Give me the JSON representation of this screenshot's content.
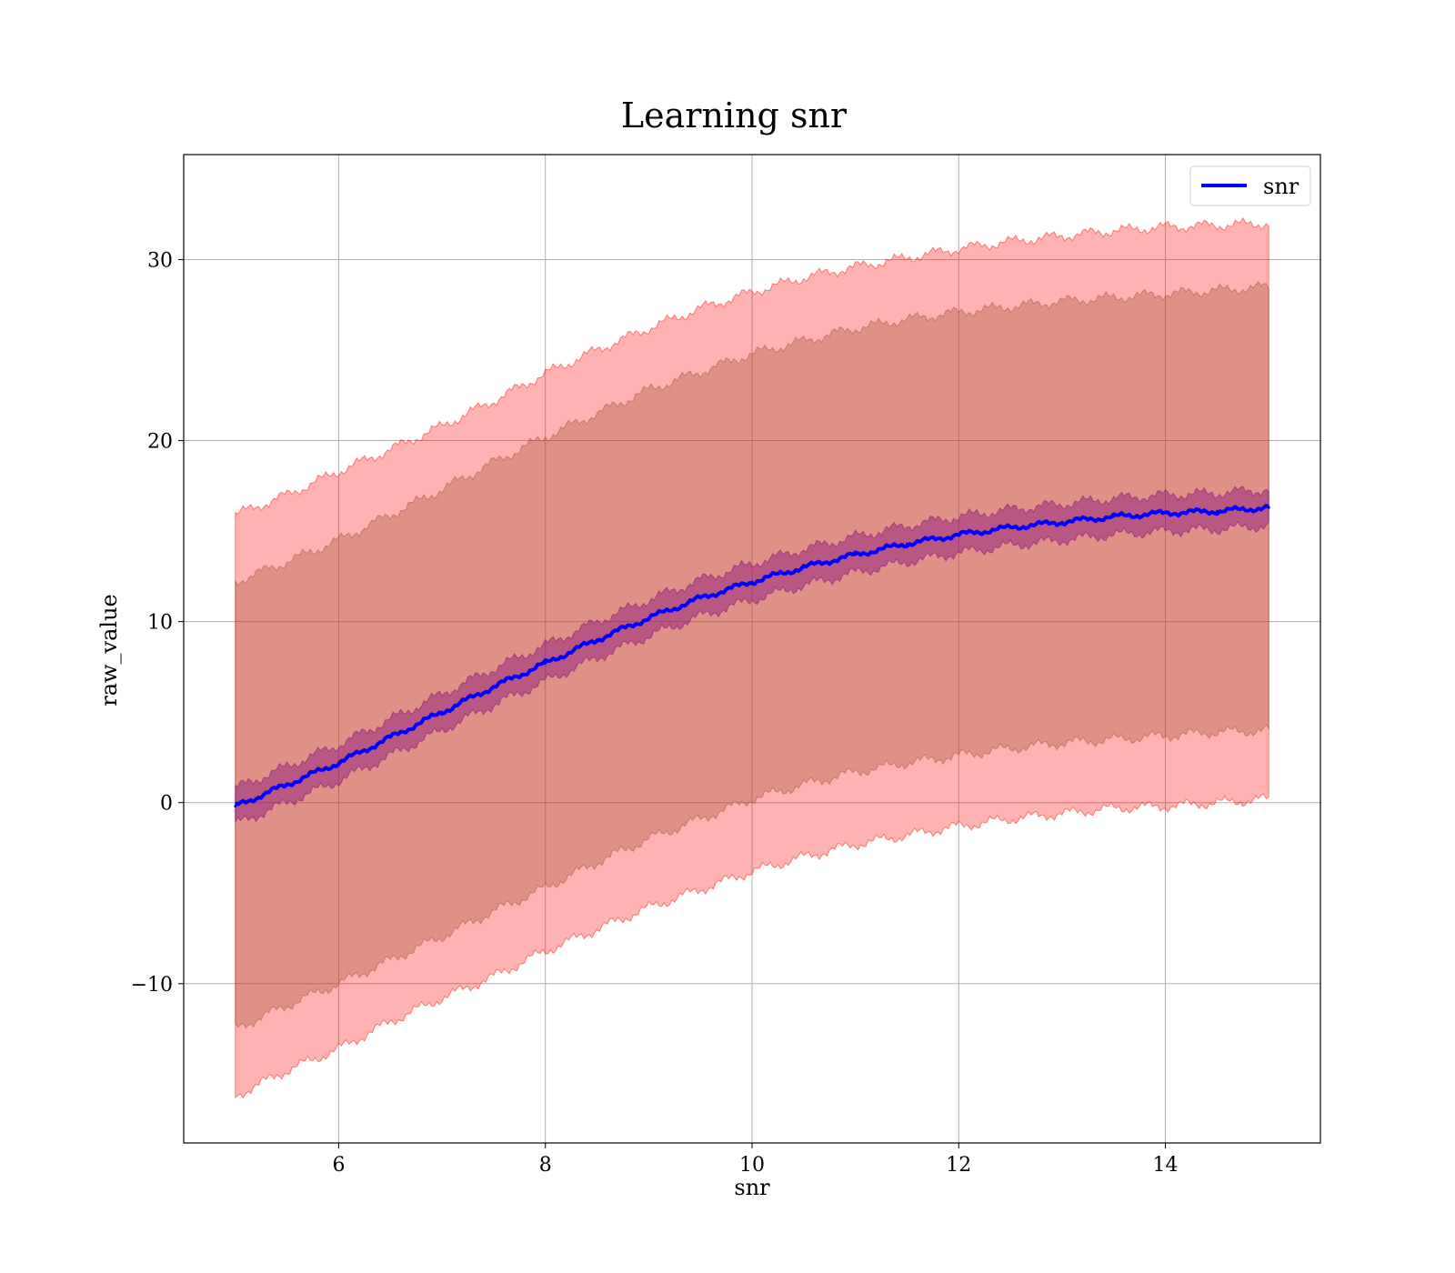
{
  "chart_data": {
    "type": "line",
    "title": "Learning snr",
    "xlabel": "snr",
    "ylabel": "raw_value",
    "xlim": [
      4.5,
      15.5
    ],
    "ylim": [
      -18.8,
      35.8
    ],
    "xticks": [
      6,
      8,
      10,
      12,
      14
    ],
    "yticks": [
      -10,
      0,
      10,
      20,
      30
    ],
    "ytick_labels": [
      "−10",
      "0",
      "10",
      "20",
      "30"
    ],
    "grid": true,
    "legend": {
      "position": "top-right",
      "entries": [
        "snr"
      ]
    },
    "x": [
      5,
      5.5,
      6,
      6.5,
      7,
      7.5,
      8,
      8.5,
      9,
      9.5,
      10,
      10.5,
      11,
      11.5,
      12,
      12.5,
      13,
      13.5,
      14,
      14.5,
      15
    ],
    "series": [
      {
        "name": "snr",
        "color": "#0000ff",
        "values": [
          -0.2,
          1.0,
          2.2,
          3.6,
          5.0,
          6.4,
          7.7,
          9.0,
          10.2,
          11.3,
          12.2,
          13.0,
          13.7,
          14.3,
          14.8,
          15.2,
          15.5,
          15.8,
          16.0,
          16.1,
          16.3
        ]
      }
    ],
    "bands": [
      {
        "color": "#ff0000",
        "opacity": 0.3,
        "lower": [
          -16.2,
          -14.8,
          -13.6,
          -12.1,
          -10.8,
          -9.6,
          -8.2,
          -7.0,
          -5.8,
          -4.8,
          -3.8,
          -3.0,
          -2.3,
          -1.8,
          -1.3,
          -0.9,
          -0.6,
          -0.3,
          -0.2,
          0.0,
          0.2
        ],
        "upper": [
          15.9,
          17.0,
          18.3,
          19.5,
          20.8,
          22.2,
          23.7,
          25.0,
          26.2,
          27.3,
          28.2,
          29.0,
          29.6,
          30.1,
          30.6,
          31.0,
          31.3,
          31.6,
          31.8,
          31.9,
          32.0
        ]
      },
      {
        "color": "#a0522d",
        "opacity": 0.35,
        "lower": [
          -12.5,
          -11.2,
          -10.0,
          -8.7,
          -7.4,
          -6.0,
          -4.7,
          -3.3,
          -2.0,
          -0.9,
          0.2,
          1.0,
          1.7,
          2.2,
          2.6,
          3.0,
          3.3,
          3.5,
          3.7,
          3.9,
          4.0
        ],
        "upper": [
          12.2,
          13.3,
          14.5,
          15.9,
          17.3,
          18.8,
          20.2,
          21.5,
          22.8,
          23.8,
          24.8,
          25.5,
          26.2,
          26.7,
          27.1,
          27.4,
          27.7,
          27.9,
          28.1,
          28.3,
          28.5
        ]
      },
      {
        "color": "#800080",
        "opacity": 0.4,
        "lower": [
          -1.2,
          0.0,
          1.2,
          2.6,
          4.0,
          5.4,
          6.7,
          8.0,
          9.2,
          10.3,
          11.2,
          12.0,
          12.7,
          13.3,
          13.8,
          14.2,
          14.5,
          14.8,
          15.0,
          15.1,
          15.3
        ],
        "upper": [
          0.8,
          2.0,
          3.2,
          4.6,
          6.0,
          7.4,
          8.7,
          10.0,
          11.2,
          12.3,
          13.2,
          14.0,
          14.7,
          15.3,
          15.8,
          16.2,
          16.5,
          16.8,
          17.0,
          17.1,
          17.3
        ]
      }
    ]
  }
}
